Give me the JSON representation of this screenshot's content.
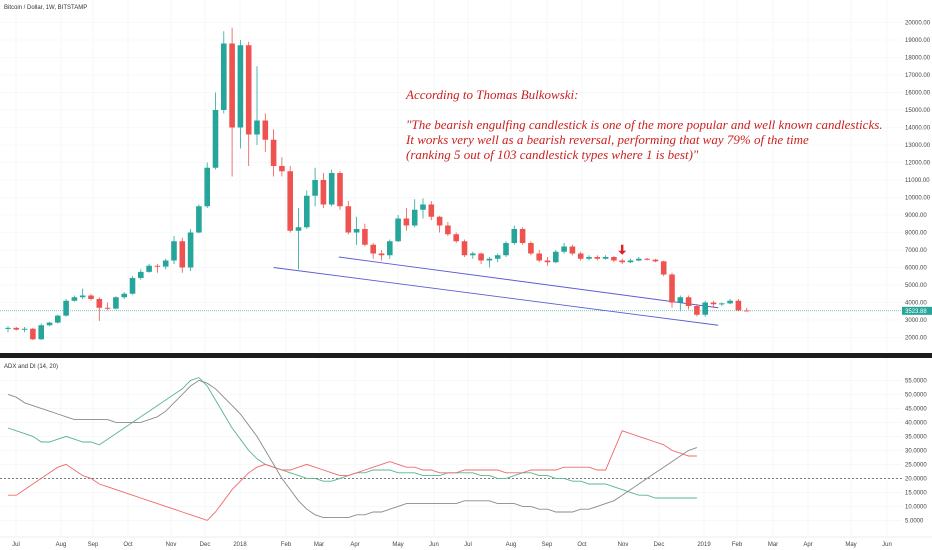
{
  "header": {
    "symbol_title": "Bitcoin / Dollar, 1W, BITSTAMP"
  },
  "annotation": {
    "lines": [
      "According to Thomas Bulkowski:",
      "",
      "\"The bearish engulfing candlestick is one of the more popular and well known candlesticks.",
      "It works very well as a bearish reversal, performing that way 79% of the time",
      "(ranking 5 out of 103 candlestick types where 1 is best)\""
    ],
    "color": "#cc1f1f"
  },
  "indicator": {
    "title": "ADX and DI (14, 20)",
    "reference_level": 20
  },
  "colors": {
    "up": "#26a69a",
    "down": "#ef5350",
    "trendline": "#5b5bd6",
    "di_plus": "#5ab48c",
    "di_minus": "#ef6a6a",
    "adx": "#8a8a8a",
    "price_tag": "#26a69a",
    "arrow": "#e02020"
  },
  "markers": [
    {
      "icon": "red-down-arrow-icon",
      "week_index": 74
    }
  ],
  "chart_data": [
    {
      "type": "candlestick",
      "title": "Bitcoin / Dollar, 1W, BITSTAMP",
      "x_ticks": [
        "Jul",
        "Aug",
        "Sep",
        "Oct",
        "Nov",
        "Dec",
        "2018",
        "Feb",
        "Mar",
        "Apr",
        "May",
        "Jun",
        "Jul",
        "Aug",
        "Sep",
        "Oct",
        "Nov",
        "Dec",
        "2019",
        "Feb",
        "Mar",
        "Apr",
        "May",
        "Jun"
      ],
      "y_ticks": [
        2000,
        3000,
        4000,
        5000,
        6000,
        7000,
        8000,
        9000,
        10000,
        11000,
        12000,
        13000,
        14000,
        15000,
        16000,
        17000,
        18000,
        19000,
        20000
      ],
      "y_tick_labels": [
        "2000.00",
        "3000.00",
        "4000.00",
        "5000.00",
        "6000.00",
        "7000.00",
        "8000.00",
        "9000.00",
        "10000.00",
        "11000.00",
        "12000.00",
        "13000.00",
        "14000.00",
        "15000.00",
        "16000.00",
        "17000.00",
        "18000.00",
        "19000.00",
        "20000.00"
      ],
      "ylim": [
        1400,
        20600
      ],
      "y_scale": "linear",
      "last_price": 3523.88,
      "last_price_label": "3523.88",
      "horizontal_line": 3523.88,
      "candles": [
        [
          2500,
          2650,
          2300,
          2550
        ],
        [
          2550,
          2600,
          2400,
          2450
        ],
        [
          2450,
          2600,
          2300,
          2500
        ],
        [
          2500,
          2550,
          1850,
          1900
        ],
        [
          1900,
          2800,
          1850,
          2700
        ],
        [
          2700,
          2900,
          2650,
          2850
        ],
        [
          2850,
          3300,
          2800,
          3250
        ],
        [
          3250,
          4200,
          3200,
          4100
        ],
        [
          4100,
          4400,
          4050,
          4300
        ],
        [
          4300,
          4800,
          4200,
          4400
        ],
        [
          4400,
          4500,
          4100,
          4200
        ],
        [
          4200,
          4300,
          2950,
          3700
        ],
        [
          3700,
          4000,
          3550,
          3650
        ],
        [
          3650,
          4350,
          3600,
          4300
        ],
        [
          4300,
          4600,
          4200,
          4500
        ],
        [
          4500,
          5500,
          4450,
          5400
        ],
        [
          5400,
          5900,
          5300,
          5750
        ],
        [
          5750,
          6200,
          5700,
          6100
        ],
        [
          6100,
          6200,
          5700,
          6050
        ],
        [
          6050,
          6500,
          5900,
          6400
        ],
        [
          6400,
          7800,
          6200,
          7500
        ],
        [
          7500,
          7700,
          5700,
          6000
        ],
        [
          6000,
          8200,
          5800,
          8000
        ],
        [
          8000,
          9600,
          7950,
          9500
        ],
        [
          9500,
          12000,
          9400,
          11700
        ],
        [
          11700,
          16000,
          11600,
          15000
        ],
        [
          15000,
          19500,
          14800,
          18800
        ],
        [
          18800,
          19700,
          11200,
          14000
        ],
        [
          14000,
          19000,
          12800,
          18700
        ],
        [
          18700,
          18900,
          11800,
          13600
        ],
        [
          13600,
          17500,
          13000,
          14400
        ],
        [
          14400,
          14800,
          12600,
          13300
        ],
        [
          13300,
          13900,
          11200,
          11800
        ],
        [
          11800,
          12300,
          11200,
          11500
        ],
        [
          11500,
          11800,
          8000,
          8100
        ],
        [
          8100,
          9400,
          5900,
          8300
        ],
        [
          8300,
          10400,
          8200,
          10100
        ],
        [
          10100,
          11700,
          9500,
          11000
        ],
        [
          11000,
          11400,
          9400,
          9600
        ],
        [
          9600,
          11600,
          9500,
          11400
        ],
        [
          11400,
          11500,
          9300,
          9500
        ],
        [
          9500,
          9800,
          7900,
          8000
        ],
        [
          8000,
          8900,
          7300,
          8200
        ],
        [
          8200,
          8500,
          7200,
          7300
        ],
        [
          7300,
          7400,
          6500,
          6800
        ],
        [
          6800,
          7000,
          6400,
          6700
        ],
        [
          6700,
          7600,
          6500,
          7500
        ],
        [
          7500,
          9000,
          7450,
          8800
        ],
        [
          8800,
          9400,
          8100,
          8400
        ],
        [
          8400,
          9900,
          8300,
          9300
        ],
        [
          9300,
          9950,
          8800,
          9600
        ],
        [
          9600,
          9800,
          8700,
          8900
        ],
        [
          8900,
          8950,
          8000,
          8400
        ],
        [
          8400,
          8600,
          7800,
          7900
        ],
        [
          7900,
          8000,
          7400,
          7500
        ],
        [
          7500,
          7600,
          6600,
          6700
        ],
        [
          6700,
          6900,
          6500,
          6800
        ],
        [
          6800,
          6850,
          6200,
          6400
        ],
        [
          6400,
          6600,
          6000,
          6500
        ],
        [
          6500,
          6800,
          6300,
          6700
        ],
        [
          6700,
          7500,
          6600,
          7400
        ],
        [
          7400,
          8400,
          7300,
          8200
        ],
        [
          8200,
          8300,
          7300,
          7400
        ],
        [
          7400,
          7500,
          6700,
          6800
        ],
        [
          6800,
          7000,
          6300,
          6400
        ],
        [
          6400,
          6600,
          6100,
          6300
        ],
        [
          6300,
          7000,
          6250,
          6900
        ],
        [
          6900,
          7400,
          6800,
          7200
        ],
        [
          7200,
          7300,
          6700,
          6800
        ],
        [
          6800,
          6900,
          6400,
          6500
        ],
        [
          6500,
          6700,
          6400,
          6600
        ],
        [
          6600,
          6700,
          6400,
          6500
        ],
        [
          6500,
          6700,
          6450,
          6600
        ],
        [
          6600,
          6650,
          6300,
          6400
        ],
        [
          6400,
          6500,
          6200,
          6300
        ],
        [
          6300,
          6500,
          6250,
          6400
        ],
        [
          6400,
          6600,
          6350,
          6500
        ],
        [
          6500,
          6550,
          6400,
          6450
        ],
        [
          6450,
          6500,
          6300,
          6350
        ],
        [
          6350,
          6400,
          5500,
          5600
        ],
        [
          5600,
          5700,
          3700,
          4000
        ],
        [
          4000,
          4400,
          3500,
          4300
        ],
        [
          4300,
          4400,
          3600,
          3800
        ],
        [
          3800,
          3900,
          3200,
          3300
        ],
        [
          3300,
          4100,
          3200,
          4000
        ],
        [
          4000,
          4100,
          3700,
          3900
        ],
        [
          3900,
          4000,
          3800,
          3950
        ],
        [
          3950,
          4200,
          3900,
          4100
        ],
        [
          4100,
          4200,
          3500,
          3550
        ],
        [
          3550,
          3700,
          3480,
          3523.88
        ]
      ],
      "candles_format": [
        "open",
        "high",
        "low",
        "close"
      ],
      "trendlines": [
        {
          "from": [
            "2018-04-01",
            6600
          ],
          "to": [
            "2019-02-15",
            3700
          ]
        },
        {
          "from": [
            "2018-02-05",
            6000
          ],
          "to": [
            "2019-02-15",
            2700
          ]
        }
      ]
    },
    {
      "type": "line",
      "title": "ADX and DI (14, 20)",
      "y_ticks": [
        5,
        10,
        15,
        20,
        25,
        30,
        35,
        40,
        45,
        50,
        55
      ],
      "y_tick_labels": [
        "5.0000",
        "10.0000",
        "15.0000",
        "20.0000",
        "25.0000",
        "30.0000",
        "35.0000",
        "40.0000",
        "45.0000",
        "50.0000",
        "55.0000"
      ],
      "ylim": [
        3,
        58
      ],
      "reference_line": 20,
      "series": [
        {
          "key": "di_plus",
          "values": [
            38,
            37,
            36,
            35,
            33,
            33,
            34,
            35,
            34,
            33,
            33,
            32,
            34,
            36,
            38,
            40,
            42,
            44,
            46,
            48,
            50,
            52,
            55,
            56,
            53,
            48,
            43,
            38,
            34,
            30,
            27,
            25,
            24,
            23,
            22,
            21,
            20,
            20,
            19,
            19,
            20,
            21,
            22,
            22,
            23,
            23,
            23,
            22,
            22,
            22,
            21,
            21,
            21,
            22,
            22,
            22,
            22,
            21,
            21,
            20,
            20,
            21,
            22,
            22,
            21,
            21,
            20,
            20,
            19,
            19,
            18,
            18,
            18,
            17,
            16,
            15,
            14,
            14,
            13,
            13,
            13,
            13,
            13,
            13
          ]
        },
        {
          "key": "di_minus",
          "values": [
            14,
            14,
            16,
            18,
            20,
            22,
            24,
            25,
            23,
            21,
            20,
            18,
            17,
            16,
            15,
            14,
            13,
            12,
            11,
            10,
            9,
            8,
            7,
            6,
            5,
            8,
            12,
            16,
            19,
            22,
            24,
            25,
            24,
            23,
            23,
            24,
            25,
            24,
            23,
            22,
            21,
            21,
            22,
            23,
            24,
            25,
            26,
            25,
            24,
            24,
            23,
            23,
            22,
            22,
            22,
            23,
            23,
            23,
            23,
            23,
            22,
            22,
            22,
            23,
            23,
            23,
            23,
            24,
            24,
            24,
            24,
            23,
            23,
            30,
            37,
            36,
            35,
            34,
            33,
            32,
            30,
            29,
            28,
            28
          ]
        },
        {
          "key": "adx",
          "values": [
            50,
            49,
            47,
            46,
            45,
            44,
            43,
            42,
            41,
            41,
            41,
            41,
            41,
            40,
            40,
            40,
            40,
            41,
            42,
            44,
            47,
            50,
            53,
            55,
            54,
            52,
            49,
            46,
            43,
            39,
            35,
            30,
            25,
            20,
            16,
            12,
            9,
            7,
            6,
            6,
            6,
            6,
            7,
            7,
            8,
            8,
            9,
            10,
            11,
            11,
            11,
            11,
            11,
            11,
            11,
            12,
            12,
            12,
            12,
            11,
            11,
            11,
            10,
            10,
            9,
            9,
            8,
            8,
            8,
            9,
            9,
            10,
            11,
            12,
            14,
            16,
            18,
            20,
            22,
            24,
            26,
            28,
            30,
            31
          ]
        }
      ]
    }
  ]
}
